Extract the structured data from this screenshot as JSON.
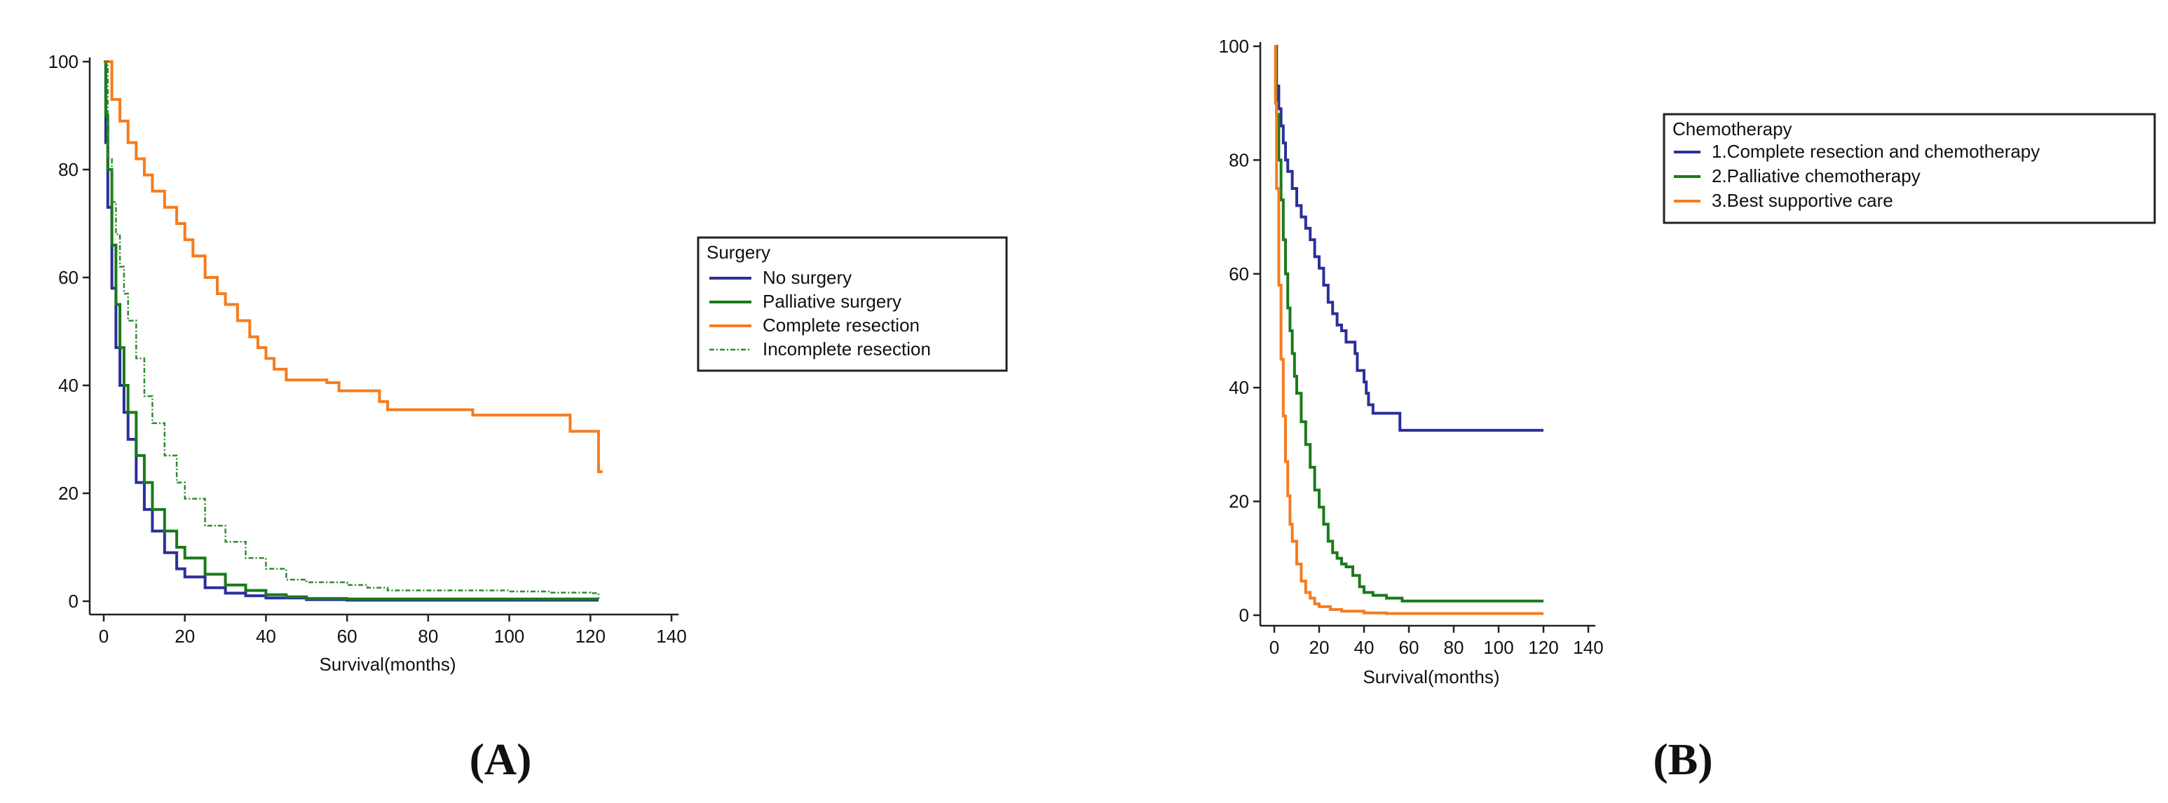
{
  "chart_data": [
    {
      "type": "line",
      "panel_label": "(A)",
      "title": "",
      "xlabel": "Survival(months)",
      "ylabel": "",
      "xlim": [
        0,
        140
      ],
      "ylim": [
        0,
        100
      ],
      "x_ticks": [
        "0",
        "20",
        "40",
        "60",
        "80",
        "100",
        "120",
        "140"
      ],
      "y_ticks": [
        "0",
        "20",
        "40",
        "60",
        "80",
        "100"
      ],
      "grid": false,
      "legend": {
        "title": "Surgery",
        "position": "right"
      },
      "series": [
        {
          "name": "No surgery",
          "color": "#2b2f9a",
          "style": "solid",
          "points": [
            [
              0,
              100
            ],
            [
              0.5,
              85
            ],
            [
              1,
              73
            ],
            [
              2,
              58
            ],
            [
              3,
              47
            ],
            [
              4,
              40
            ],
            [
              5,
              35
            ],
            [
              6,
              30
            ],
            [
              8,
              22
            ],
            [
              10,
              17
            ],
            [
              12,
              13
            ],
            [
              15,
              9
            ],
            [
              18,
              6
            ],
            [
              20,
              4.5
            ],
            [
              25,
              2.5
            ],
            [
              30,
              1.5
            ],
            [
              35,
              1
            ],
            [
              40,
              0.6
            ],
            [
              50,
              0.3
            ],
            [
              60,
              0.2
            ],
            [
              80,
              0.2
            ],
            [
              100,
              0.2
            ],
            [
              122,
              0.2
            ]
          ]
        },
        {
          "name": "Palliative surgery",
          "color": "#1a7a1a",
          "style": "solid",
          "points": [
            [
              0,
              100
            ],
            [
              0.5,
              90
            ],
            [
              1,
              80
            ],
            [
              2,
              66
            ],
            [
              3,
              55
            ],
            [
              4,
              47
            ],
            [
              5,
              40
            ],
            [
              6,
              35
            ],
            [
              8,
              27
            ],
            [
              10,
              22
            ],
            [
              12,
              17
            ],
            [
              15,
              13
            ],
            [
              18,
              10
            ],
            [
              20,
              8
            ],
            [
              25,
              5
            ],
            [
              30,
              3
            ],
            [
              35,
              2
            ],
            [
              40,
              1.2
            ],
            [
              45,
              0.8
            ],
            [
              50,
              0.5
            ],
            [
              60,
              0.4
            ],
            [
              80,
              0.4
            ],
            [
              100,
              0.4
            ],
            [
              122,
              0.4
            ]
          ]
        },
        {
          "name": "Complete resection",
          "color": "#f57c1f",
          "style": "solid",
          "points": [
            [
              0,
              100
            ],
            [
              2,
              93
            ],
            [
              4,
              89
            ],
            [
              6,
              85
            ],
            [
              8,
              82
            ],
            [
              10,
              79
            ],
            [
              12,
              76
            ],
            [
              15,
              73
            ],
            [
              18,
              70
            ],
            [
              20,
              67
            ],
            [
              22,
              64
            ],
            [
              25,
              60
            ],
            [
              28,
              57
            ],
            [
              30,
              55
            ],
            [
              33,
              52
            ],
            [
              36,
              49
            ],
            [
              38,
              47
            ],
            [
              40,
              45
            ],
            [
              42,
              43
            ],
            [
              45,
              41
            ],
            [
              50,
              41
            ],
            [
              55,
              40.5
            ],
            [
              58,
              39
            ],
            [
              66,
              39
            ],
            [
              68,
              37
            ],
            [
              70,
              35.5
            ],
            [
              90,
              35.5
            ],
            [
              91,
              34.5
            ],
            [
              115,
              34.5
            ],
            [
              115,
              31.5
            ],
            [
              122,
              31.5
            ],
            [
              122,
              24
            ],
            [
              123,
              24
            ]
          ]
        },
        {
          "name": "Incomplete resection",
          "color": "#2f8a2f",
          "style": "dashed",
          "points": [
            [
              0,
              100
            ],
            [
              1,
              82
            ],
            [
              2,
              74
            ],
            [
              3,
              68
            ],
            [
              4,
              62
            ],
            [
              5,
              57
            ],
            [
              6,
              52
            ],
            [
              8,
              45
            ],
            [
              10,
              38
            ],
            [
              12,
              33
            ],
            [
              15,
              27
            ],
            [
              18,
              22
            ],
            [
              20,
              19
            ],
            [
              25,
              14
            ],
            [
              30,
              11
            ],
            [
              35,
              8
            ],
            [
              40,
              6
            ],
            [
              45,
              4
            ],
            [
              50,
              3.5
            ],
            [
              55,
              3.5
            ],
            [
              60,
              3
            ],
            [
              65,
              2.5
            ],
            [
              70,
              2
            ],
            [
              80,
              2
            ],
            [
              90,
              2
            ],
            [
              100,
              1.8
            ],
            [
              110,
              1.6
            ],
            [
              120,
              1.5
            ],
            [
              122,
              0.4
            ]
          ]
        }
      ]
    },
    {
      "type": "line",
      "panel_label": "(B)",
      "title": "",
      "xlabel": "Survival(months)",
      "ylabel": "",
      "xlim": [
        0,
        140
      ],
      "ylim": [
        0,
        100
      ],
      "x_ticks": [
        "0",
        "20",
        "40",
        "60",
        "80",
        "100",
        "120",
        "140"
      ],
      "y_ticks": [
        "0",
        "20",
        "40",
        "60",
        "80",
        "100"
      ],
      "grid": false,
      "legend": {
        "title": "Chemotherapy",
        "position": "top-right"
      },
      "series": [
        {
          "name": "1.Complete resection and chemotherapy",
          "color": "#2b2f9a",
          "style": "solid",
          "points": [
            [
              0,
              100
            ],
            [
              1,
              93
            ],
            [
              2,
              89
            ],
            [
              3,
              86
            ],
            [
              4,
              83
            ],
            [
              5,
              80
            ],
            [
              6,
              78
            ],
            [
              8,
              75
            ],
            [
              10,
              72
            ],
            [
              12,
              70
            ],
            [
              14,
              68
            ],
            [
              16,
              66
            ],
            [
              18,
              63
            ],
            [
              20,
              61
            ],
            [
              22,
              58
            ],
            [
              24,
              55
            ],
            [
              26,
              53
            ],
            [
              28,
              51
            ],
            [
              30,
              50
            ],
            [
              32,
              48
            ],
            [
              36,
              48
            ],
            [
              36,
              46
            ],
            [
              37,
              43
            ],
            [
              40,
              41
            ],
            [
              41,
              39
            ],
            [
              42,
              37
            ],
            [
              44,
              35.5
            ],
            [
              56,
              35.5
            ],
            [
              56,
              32.5
            ],
            [
              120,
              32.5
            ]
          ]
        },
        {
          "name": "2.Palliative chemotherapy",
          "color": "#1a7a1a",
          "style": "solid",
          "points": [
            [
              0,
              100
            ],
            [
              1,
              88
            ],
            [
              2,
              80
            ],
            [
              3,
              73
            ],
            [
              4,
              66
            ],
            [
              5,
              60
            ],
            [
              6,
              54
            ],
            [
              7,
              50
            ],
            [
              8,
              46
            ],
            [
              9,
              42
            ],
            [
              10,
              39
            ],
            [
              12,
              34
            ],
            [
              14,
              30
            ],
            [
              16,
              26
            ],
            [
              18,
              22
            ],
            [
              20,
              19
            ],
            [
              22,
              16
            ],
            [
              24,
              13
            ],
            [
              26,
              11
            ],
            [
              28,
              10
            ],
            [
              30,
              9
            ],
            [
              32,
              8.5
            ],
            [
              35,
              7
            ],
            [
              38,
              5
            ],
            [
              40,
              4
            ],
            [
              44,
              3.5
            ],
            [
              50,
              3
            ],
            [
              56,
              3
            ],
            [
              57,
              2.5
            ],
            [
              120,
              2.5
            ]
          ]
        },
        {
          "name": "3.Best supportive care",
          "color": "#f57c1f",
          "style": "solid",
          "points": [
            [
              0,
              100
            ],
            [
              0.5,
              90
            ],
            [
              1,
              75
            ],
            [
              2,
              58
            ],
            [
              3,
              45
            ],
            [
              4,
              35
            ],
            [
              5,
              27
            ],
            [
              6,
              21
            ],
            [
              7,
              16
            ],
            [
              8,
              13
            ],
            [
              10,
              9
            ],
            [
              12,
              6
            ],
            [
              14,
              4
            ],
            [
              16,
              3
            ],
            [
              18,
              2
            ],
            [
              20,
              1.5
            ],
            [
              25,
              1
            ],
            [
              30,
              0.7
            ],
            [
              40,
              0.4
            ],
            [
              50,
              0.3
            ],
            [
              60,
              0.3
            ],
            [
              80,
              0.3
            ],
            [
              100,
              0.3
            ],
            [
              120,
              0.3
            ]
          ]
        }
      ]
    }
  ]
}
